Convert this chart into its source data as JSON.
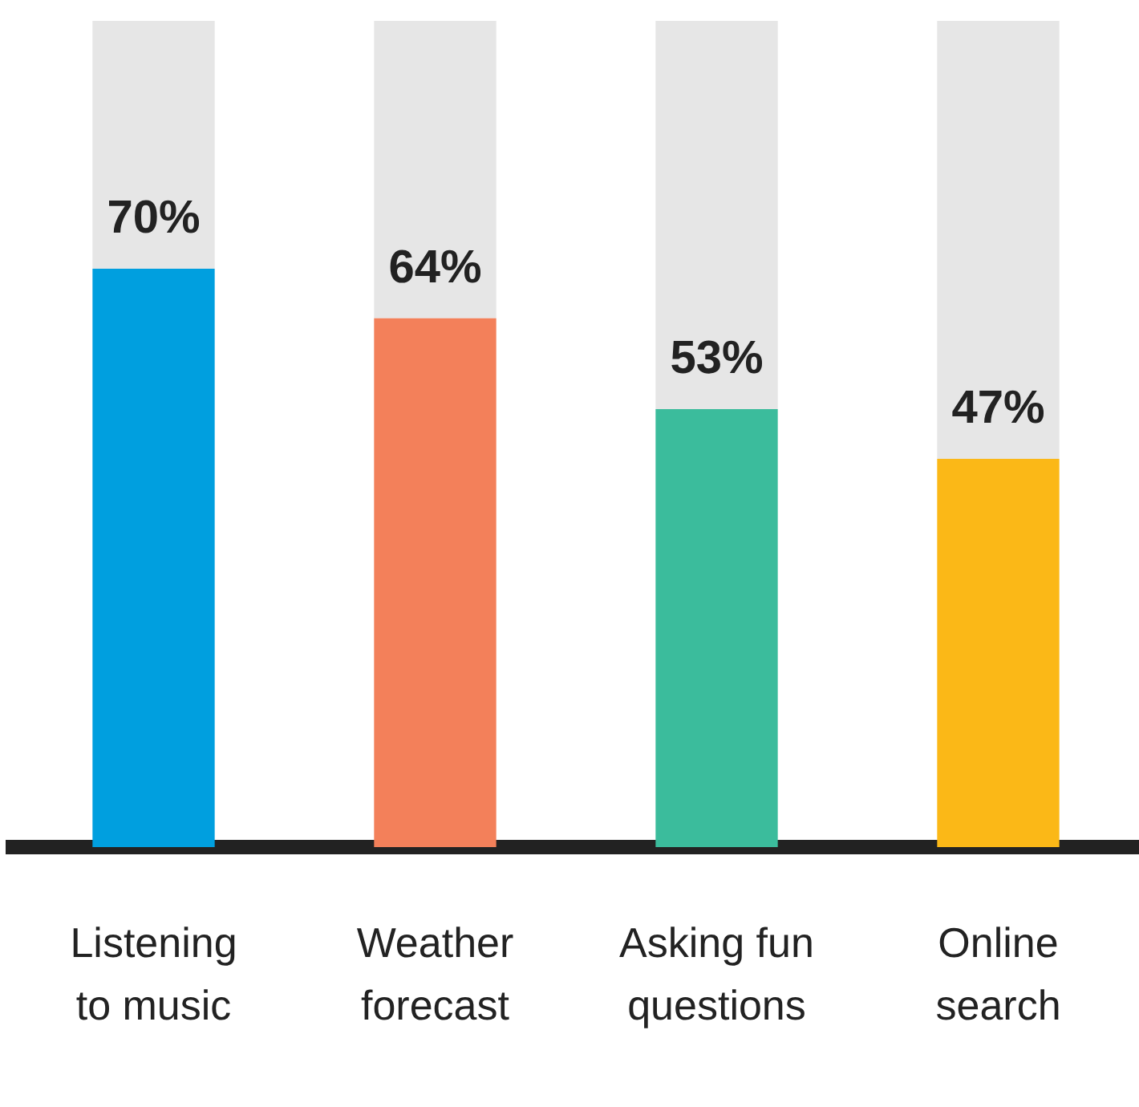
{
  "chart_data": {
    "type": "bar",
    "stacked": true,
    "relative": false,
    "categories": [
      "Listening to music",
      "Weather forecast",
      "Asking fun questions",
      "Online search"
    ],
    "series": [
      {
        "colors": [
          "#009fdf",
          "#f3805a",
          "#3bbc9c",
          "#fbb817"
        ],
        "values": [
          70,
          64,
          53,
          47
        ],
        "value_labels": [
          "70%",
          "64%",
          "53%",
          "47%"
        ]
      },
      {
        "color": "#e6e6e6",
        "values": [
          30,
          36,
          47,
          53
        ]
      }
    ],
    "ylim": [
      0,
      100
    ],
    "tick_labels": "x",
    "grid": false,
    "legend": false
  }
}
